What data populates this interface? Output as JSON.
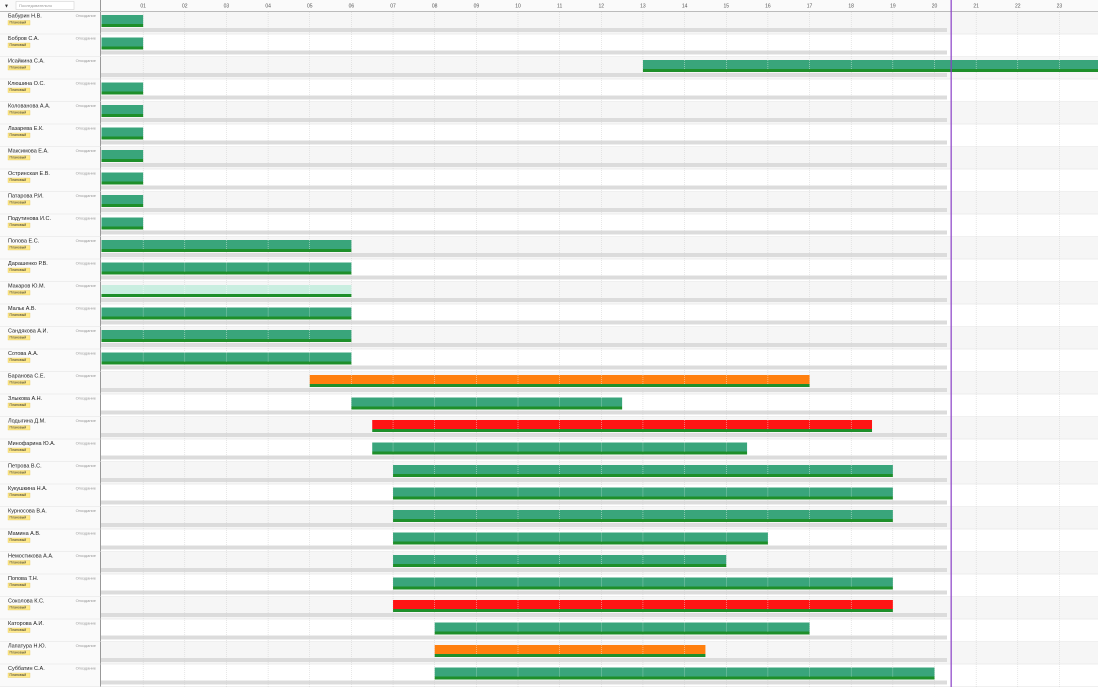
{
  "toolbar": {
    "search": "Последовательно"
  },
  "hours": [
    "01",
    "02",
    "03",
    "04",
    "05",
    "06",
    "07",
    "08",
    "09",
    "10",
    "11",
    "12",
    "13",
    "14",
    "15",
    "16",
    "17",
    "18",
    "19",
    "20",
    "21",
    "22",
    "23"
  ],
  "now": 20.4,
  "rows": [
    {
      "name": "Бабурин Н.В.",
      "tag": "Плановый",
      "status": "Опоздание",
      "start": 0,
      "end": 1,
      "color": "#39a57b"
    },
    {
      "name": "Бобров С.А.",
      "tag": "Плановый",
      "status": "Опоздание",
      "start": 0,
      "end": 1,
      "color": "#39a57b"
    },
    {
      "name": "Исайкина С.А.",
      "tag": "Плановый",
      "status": "Опоздание",
      "start": 13,
      "end": 24,
      "color": "#39a57b"
    },
    {
      "name": "Клюшина О.С.",
      "tag": "Плановый",
      "status": "Опоздание",
      "start": 0,
      "end": 1,
      "color": "#39a57b"
    },
    {
      "name": "Колованова А.А.",
      "tag": "Плановый",
      "status": "Опоздание",
      "start": 0,
      "end": 1,
      "color": "#39a57b"
    },
    {
      "name": "Лазарева Е.К.",
      "tag": "Плановый",
      "status": "Опоздание",
      "start": 0,
      "end": 1,
      "color": "#39a57b"
    },
    {
      "name": "Максимова Е.А.",
      "tag": "Плановый",
      "status": "Опоздание",
      "start": 0,
      "end": 1,
      "color": "#39a57b"
    },
    {
      "name": "Остринская Е.В.",
      "tag": "Плановый",
      "status": "Опоздание",
      "start": 0,
      "end": 1,
      "color": "#39a57b"
    },
    {
      "name": "Патарова Р.И.",
      "tag": "Плановый",
      "status": "Опоздание",
      "start": 0,
      "end": 1,
      "color": "#39a57b"
    },
    {
      "name": "Подутинова И.С.",
      "tag": "Плановый",
      "status": "Опоздание",
      "start": 0,
      "end": 1,
      "color": "#39a57b"
    },
    {
      "name": "Попова Е.С.",
      "tag": "Плановый",
      "status": "Опоздание",
      "start": 0,
      "end": 6,
      "color": "#39a57b"
    },
    {
      "name": "Дарашенко Р.В.",
      "tag": "Плановый",
      "status": "Опоздание",
      "start": 0,
      "end": 6,
      "color": "#39a57b"
    },
    {
      "name": "Макаров Ю.М.",
      "tag": "Плановый",
      "status": "Опоздание",
      "start": 0,
      "end": 6,
      "color": "#c9eee0"
    },
    {
      "name": "Мальк А.В.",
      "tag": "Плановый",
      "status": "Опоздание",
      "start": 0,
      "end": 6,
      "color": "#39a57b"
    },
    {
      "name": "Сандякова А.И.",
      "tag": "Плановый",
      "status": "Опоздание",
      "start": 0,
      "end": 6,
      "color": "#39a57b"
    },
    {
      "name": "Сотова А.А.",
      "tag": "Плановый",
      "status": "Опоздание",
      "start": 0,
      "end": 6,
      "color": "#39a57b"
    },
    {
      "name": "Баранова С.Е.",
      "tag": "Плановый",
      "status": "Опоздание",
      "start": 5,
      "end": 17,
      "color": "#ff7f0e"
    },
    {
      "name": "Злыкова А.Н.",
      "tag": "Плановый",
      "status": "Опоздание",
      "start": 6,
      "end": 12.5,
      "color": "#39a57b"
    },
    {
      "name": "Лодыгина Д.М.",
      "tag": "Плановый",
      "status": "Опоздание",
      "start": 6.5,
      "end": 18.5,
      "color": "#ff1414"
    },
    {
      "name": "Минофарина Ю.А.",
      "tag": "Плановый",
      "status": "Опоздание",
      "start": 6.5,
      "end": 15.5,
      "color": "#39a57b"
    },
    {
      "name": "Петрова В.С.",
      "tag": "Плановый",
      "status": "Опоздание",
      "start": 7,
      "end": 19,
      "color": "#39a57b"
    },
    {
      "name": "Кукушкина Н.А.",
      "tag": "Плановый",
      "status": "Опоздание",
      "start": 7,
      "end": 19,
      "color": "#39a57b"
    },
    {
      "name": "Курносова В.А.",
      "tag": "Плановый",
      "status": "Опоздание",
      "start": 7,
      "end": 19,
      "color": "#39a57b"
    },
    {
      "name": "Мамина А.В.",
      "tag": "Плановый",
      "status": "Опоздание",
      "start": 7,
      "end": 16,
      "color": "#39a57b"
    },
    {
      "name": "Немостикова А.А.",
      "tag": "Плановый",
      "status": "Опоздание",
      "start": 7,
      "end": 15,
      "color": "#39a57b"
    },
    {
      "name": "Попова Т.Н.",
      "tag": "Плановый",
      "status": "Опоздание",
      "start": 7,
      "end": 19,
      "color": "#39a57b"
    },
    {
      "name": "Соколова К.С.",
      "tag": "Плановый",
      "status": "Опоздание",
      "start": 7,
      "end": 19,
      "color": "#ff1414"
    },
    {
      "name": "Каторова А.И.",
      "tag": "Плановый",
      "status": "Опоздание",
      "start": 8,
      "end": 17,
      "color": "#39a57b"
    },
    {
      "name": "Лапатура Н.Ю.",
      "tag": "Плановый",
      "status": "Опоздание",
      "start": 8,
      "end": 14.5,
      "color": "#ff7f0e"
    },
    {
      "name": "Суббатин С.А.",
      "tag": "Плановый",
      "status": "Опоздание",
      "start": 8,
      "end": 20,
      "color": "#39a57b"
    }
  ]
}
